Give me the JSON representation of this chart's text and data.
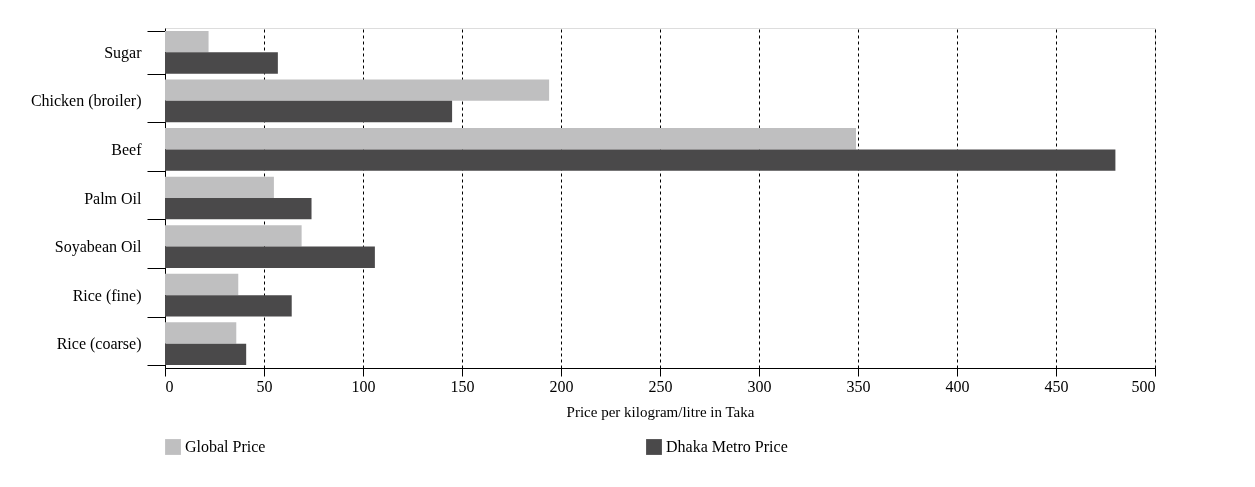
{
  "chart_data": {
    "type": "bar",
    "orientation": "horizontal",
    "categories": [
      "Sugar",
      "Chicken (broiler)",
      "Beef",
      "Palm Oil",
      "Soyabean Oil",
      "Rice (fine)",
      "Rice (coarse)"
    ],
    "series": [
      {
        "name": "Global Price",
        "color": "#bfbfc0",
        "values": [
          22,
          194,
          349,
          55,
          69,
          37,
          36
        ]
      },
      {
        "name": "Dhaka Metro Price",
        "color": "#4a494a",
        "values": [
          57,
          145,
          480,
          74,
          106,
          64,
          41
        ]
      }
    ],
    "xlabel": "Price per kilogram/litre in Taka",
    "xlim": [
      0,
      500
    ],
    "xticks": [
      0,
      50,
      100,
      150,
      200,
      250,
      300,
      350,
      400,
      450,
      500
    ],
    "grid": "x",
    "legend": "bottom"
  }
}
